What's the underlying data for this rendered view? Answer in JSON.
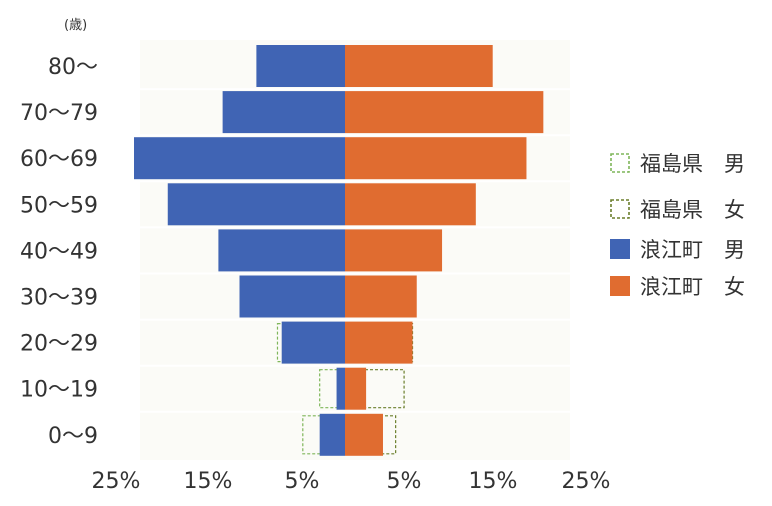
{
  "chart_data": {
    "type": "bar",
    "orientation": "horizontal-population-pyramid",
    "unit_label": "(歳)",
    "categories": [
      "80～",
      "70～79",
      "60～69",
      "50～59",
      "40～49",
      "30～39",
      "20～29",
      "10～19",
      "0～9"
    ],
    "x_ticks": [
      "25%",
      "15%",
      "5%",
      "5%",
      "15%",
      "25%"
    ],
    "xlim": [
      -25,
      25
    ],
    "legend_position": "right",
    "legend": [
      {
        "label": "福島県　男",
        "style": "dashed",
        "color": "#7fb65a"
      },
      {
        "label": "福島県　女",
        "style": "dashed",
        "color": "#6b7f2c"
      },
      {
        "label": "浪江町　男",
        "style": "solid",
        "color": "#4064b4"
      },
      {
        "label": "浪江町　女",
        "style": "solid",
        "color": "#e06c30"
      }
    ],
    "series": [
      {
        "name": "福島県　男",
        "side": "left",
        "values": [
          6,
          12,
          19,
          18,
          14,
          9,
          8,
          3,
          5
        ]
      },
      {
        "name": "福島県　女",
        "side": "right",
        "values": [
          11,
          15,
          17,
          14,
          11,
          8,
          8,
          7,
          6
        ]
      },
      {
        "name": "浪江町　男",
        "side": "left",
        "values": [
          10.5,
          14.5,
          25,
          21,
          15,
          12.5,
          7.5,
          1,
          3
        ]
      },
      {
        "name": "浪江町　女",
        "side": "right",
        "values": [
          17.5,
          23.5,
          21.5,
          15.5,
          11.5,
          8.5,
          8,
          2.5,
          4.5
        ]
      }
    ]
  }
}
